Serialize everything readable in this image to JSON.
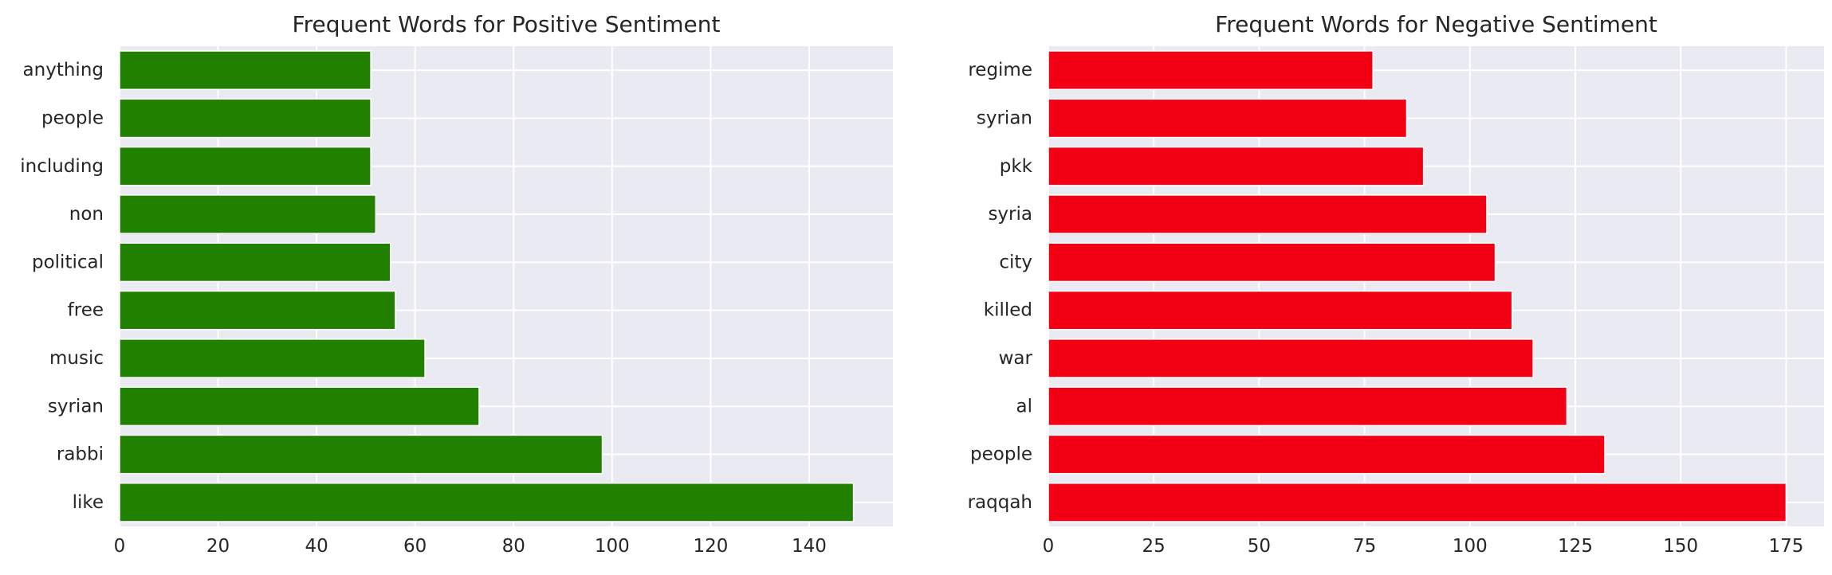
{
  "chart_data": [
    {
      "type": "bar",
      "orientation": "horizontal",
      "title": "Frequent Words for Positive Sentiment",
      "xlabel": "",
      "ylabel": "",
      "categories": [
        "anything",
        "people",
        "including",
        "non",
        "political",
        "free",
        "music",
        "syrian",
        "rabbi",
        "like"
      ],
      "values": [
        51,
        51,
        51,
        52,
        55,
        56,
        62,
        73,
        98,
        149
      ],
      "xlim": [
        0,
        157
      ],
      "xticks": [
        0,
        20,
        40,
        60,
        80,
        100,
        120,
        140
      ],
      "bar_color": "#228000",
      "background_color": "#eaeaf2",
      "grid": true
    },
    {
      "type": "bar",
      "orientation": "horizontal",
      "title": "Frequent Words for Negative Sentiment",
      "xlabel": "",
      "ylabel": "",
      "categories": [
        "regime",
        "syrian",
        "pkk",
        "syria",
        "city",
        "killed",
        "war",
        "al",
        "people",
        "raqqah"
      ],
      "values": [
        77,
        85,
        89,
        104,
        106,
        110,
        115,
        123,
        132,
        175
      ],
      "xlim": [
        0,
        184
      ],
      "xticks": [
        0,
        25,
        50,
        75,
        100,
        125,
        150,
        175
      ],
      "bar_color": "#f40015",
      "background_color": "#eaeaf2",
      "grid": true
    }
  ]
}
